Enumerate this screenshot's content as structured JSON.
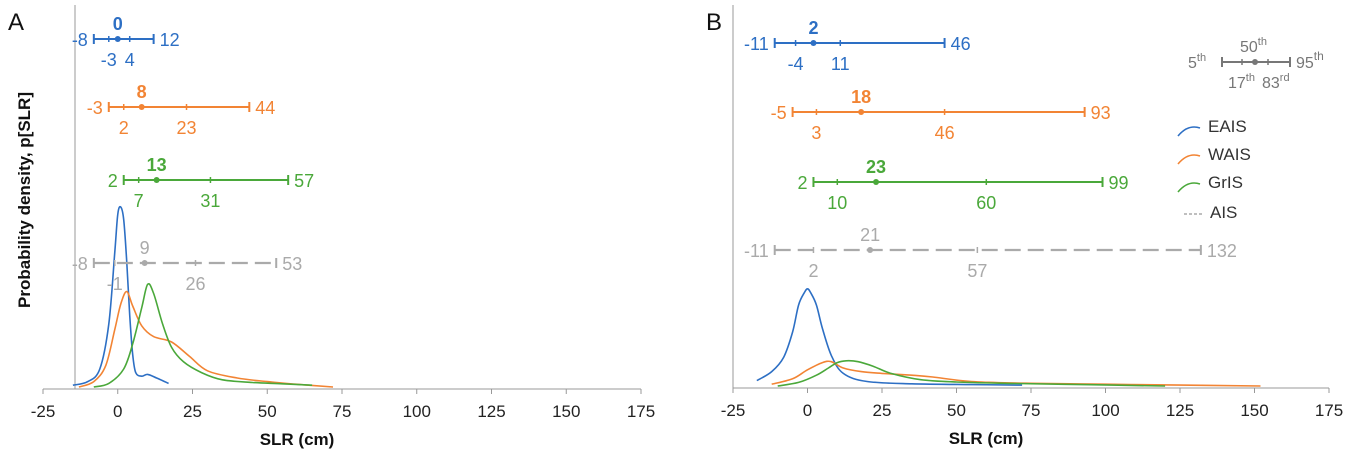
{
  "figure": {
    "ylabel": "Probability density, p[SLR]",
    "colors": {
      "EAIS": "#2d6fc4",
      "WAIS": "#f28434",
      "GrIS": "#4aa83a",
      "AIS": "#aaaaaa"
    }
  },
  "legend": {
    "entries": [
      {
        "name": "EAIS",
        "color": "#2d6fc4",
        "style": "solid"
      },
      {
        "name": "WAIS",
        "color": "#f28434",
        "style": "solid"
      },
      {
        "name": "GrIS",
        "color": "#4aa83a",
        "style": "solid"
      },
      {
        "name": "AIS",
        "color": "#aaaaaa",
        "style": "dashed"
      }
    ],
    "key": {
      "p5": {
        "num": "5",
        "sup": "th"
      },
      "p50": {
        "num": "50",
        "sup": "th"
      },
      "p95": {
        "num": "95",
        "sup": "th"
      },
      "p17": {
        "num": "17",
        "sup": "th"
      },
      "p83": {
        "num": "83",
        "sup": "rd"
      }
    }
  },
  "chart_data": [
    {
      "type": "line",
      "panel": "A",
      "xlabel": "SLR (cm)",
      "ylabel": "Probability density, p[SLR]",
      "xlim": [
        -25,
        175
      ],
      "xticks": [
        -25,
        0,
        25,
        50,
        75,
        100,
        125,
        150,
        175
      ],
      "xtick_labels": [
        "-25",
        "0",
        "25",
        "50",
        "75",
        "100",
        "125",
        "150",
        "175"
      ],
      "grid": false,
      "ranges": [
        {
          "name": "EAIS",
          "p5": -8,
          "p17": -3,
          "p50": 0,
          "p83": 4,
          "p95": 12,
          "labels": {
            "p5": "-8",
            "p17": "-3",
            "p50": "0",
            "p83": "4",
            "p95": "12"
          }
        },
        {
          "name": "WAIS",
          "p5": -3,
          "p17": 2,
          "p50": 8,
          "p83": 23,
          "p95": 44,
          "labels": {
            "p5": "-3",
            "p17": "2",
            "p50": "8",
            "p83": "23",
            "p95": "44"
          }
        },
        {
          "name": "GrIS",
          "p5": 2,
          "p17": 7,
          "p50": 13,
          "p83": 31,
          "p95": 57,
          "labels": {
            "p5": "2",
            "p17": "7",
            "p50": "13",
            "p83": "31",
            "p95": "57"
          }
        },
        {
          "name": "AIS",
          "p5": -8,
          "p17": -1,
          "p50": 9,
          "p83": 26,
          "p95": 53,
          "labels": {
            "p5": "-8",
            "p17": "-1",
            "p50": "9",
            "p83": "26",
            "p95": "53"
          }
        }
      ],
      "series": [
        {
          "name": "EAIS",
          "x": [
            -15,
            -10,
            -6,
            -3,
            -1,
            0,
            1,
            2,
            3,
            4,
            5,
            6,
            8,
            10,
            13,
            17
          ],
          "y": [
            0.01,
            0.03,
            0.1,
            0.35,
            0.75,
            0.96,
            1.0,
            0.93,
            0.7,
            0.4,
            0.18,
            0.08,
            0.06,
            0.07,
            0.05,
            0.02
          ]
        },
        {
          "name": "WAIS",
          "x": [
            -13,
            -8,
            -4,
            -1,
            1,
            3,
            5,
            8,
            12,
            18,
            24,
            30,
            40,
            50,
            60,
            72
          ],
          "y": [
            0.0,
            0.03,
            0.12,
            0.32,
            0.46,
            0.53,
            0.45,
            0.34,
            0.28,
            0.25,
            0.17,
            0.09,
            0.05,
            0.03,
            0.015,
            0.0
          ]
        },
        {
          "name": "GrIS",
          "x": [
            -8,
            -3,
            2,
            5,
            8,
            10,
            12,
            15,
            18,
            22,
            28,
            35,
            45,
            55,
            65
          ],
          "y": [
            0.0,
            0.02,
            0.1,
            0.24,
            0.44,
            0.57,
            0.52,
            0.35,
            0.22,
            0.14,
            0.08,
            0.04,
            0.025,
            0.018,
            0.01
          ]
        }
      ]
    },
    {
      "type": "line",
      "panel": "B",
      "xlabel": "SLR (cm)",
      "xlim": [
        -25,
        175
      ],
      "xticks": [
        -25,
        0,
        25,
        50,
        75,
        100,
        125,
        150,
        175
      ],
      "xtick_labels": [
        "-25",
        "0",
        "25",
        "50",
        "75",
        "100",
        "125",
        "150",
        "175"
      ],
      "grid": false,
      "ranges": [
        {
          "name": "EAIS",
          "p5": -11,
          "p17": -4,
          "p50": 2,
          "p83": 11,
          "p95": 46,
          "labels": {
            "p5": "-11",
            "p17": "-4",
            "p50": "2",
            "p83": "11",
            "p95": "46"
          }
        },
        {
          "name": "WAIS",
          "p5": -5,
          "p17": 3,
          "p50": 18,
          "p83": 46,
          "p95": 93,
          "labels": {
            "p5": "-5",
            "p17": "3",
            "p50": "18",
            "p83": "46",
            "p95": "93"
          }
        },
        {
          "name": "GrIS",
          "p5": 2,
          "p17": 10,
          "p50": 23,
          "p83": 60,
          "p95": 99,
          "labels": {
            "p5": "2",
            "p17": "10",
            "p50": "23",
            "p83": "60",
            "p95": "99"
          }
        },
        {
          "name": "AIS",
          "p5": -11,
          "p17": 2,
          "p50": 21,
          "p83": 57,
          "p95": 132,
          "labels": {
            "p5": "-11",
            "p17": "2",
            "p50": "21",
            "p83": "57",
            "p95": "132"
          }
        }
      ],
      "series": [
        {
          "name": "EAIS",
          "x": [
            -17,
            -12,
            -8,
            -5,
            -3,
            -1,
            0,
            1,
            3,
            5,
            8,
            12,
            20,
            35,
            55,
            72
          ],
          "y": [
            0.03,
            0.08,
            0.16,
            0.3,
            0.45,
            0.52,
            0.54,
            0.52,
            0.45,
            0.32,
            0.17,
            0.07,
            0.025,
            0.012,
            0.008,
            0.005
          ]
        },
        {
          "name": "WAIS",
          "x": [
            -12,
            -5,
            0,
            5,
            8,
            12,
            18,
            25,
            35,
            42,
            55,
            75,
            100,
            125,
            152
          ],
          "y": [
            0.01,
            0.04,
            0.09,
            0.13,
            0.135,
            0.1,
            0.08,
            0.07,
            0.06,
            0.05,
            0.025,
            0.015,
            0.01,
            0.005,
            0.0
          ]
        },
        {
          "name": "GrIS",
          "x": [
            -10,
            -3,
            3,
            7,
            10,
            13,
            17,
            22,
            28,
            38,
            50,
            70,
            95,
            120
          ],
          "y": [
            0.0,
            0.02,
            0.06,
            0.1,
            0.13,
            0.14,
            0.135,
            0.11,
            0.07,
            0.035,
            0.022,
            0.014,
            0.007,
            0.0
          ]
        }
      ]
    }
  ]
}
